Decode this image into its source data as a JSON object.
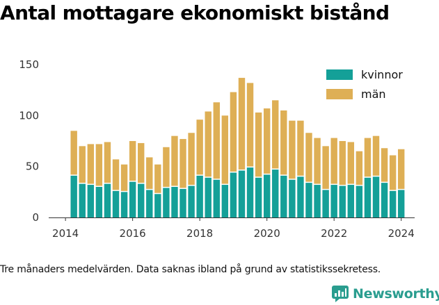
{
  "title": "Antal mottagare ekonomiskt bistånd",
  "caption": "Tre månaders medelvärden. Data saknas ibland på grund av statistikssekretess.",
  "brand": "Newsworthy",
  "colors": {
    "kvinnor": "#14a098",
    "man": "#deaf55",
    "axis": "#333333",
    "brand": "#2a9d8f"
  },
  "chart_data": {
    "type": "bar",
    "stacked": true,
    "x_ticks": [
      2014,
      2016,
      2018,
      2020,
      2022,
      2024
    ],
    "y_ticks": [
      0,
      50,
      100,
      150
    ],
    "ylim": [
      0,
      150
    ],
    "xlim": [
      2013.5,
      2024.4
    ],
    "legend_position": "top-right",
    "grid": false,
    "x": [
      2014.25,
      2014.5,
      2014.75,
      2015.0,
      2015.25,
      2015.5,
      2015.75,
      2016.0,
      2016.25,
      2016.5,
      2016.75,
      2017.0,
      2017.25,
      2017.5,
      2017.75,
      2018.0,
      2018.25,
      2018.5,
      2018.75,
      2019.0,
      2019.25,
      2019.5,
      2019.75,
      2020.0,
      2020.25,
      2020.5,
      2020.75,
      2021.0,
      2021.25,
      2021.5,
      2021.75,
      2022.0,
      2022.25,
      2022.5,
      2022.75,
      2023.0,
      2023.25,
      2023.5,
      2023.75,
      2024.0
    ],
    "series": [
      {
        "name": "kvinnor",
        "values": [
          41,
          33,
          32,
          30,
          33,
          26,
          25,
          35,
          33,
          27,
          23,
          29,
          30,
          28,
          31,
          41,
          39,
          37,
          32,
          44,
          46,
          49,
          39,
          42,
          47,
          41,
          37,
          40,
          34,
          32,
          27,
          32,
          31,
          32,
          31,
          39,
          40,
          34,
          26,
          27
        ]
      },
      {
        "name": "män",
        "values": [
          44,
          37,
          40,
          42,
          41,
          31,
          27,
          40,
          40,
          32,
          29,
          40,
          50,
          49,
          52,
          55,
          65,
          76,
          68,
          79,
          91,
          83,
          64,
          65,
          68,
          64,
          58,
          55,
          49,
          46,
          43,
          46,
          44,
          42,
          34,
          39,
          40,
          34,
          35,
          40
        ]
      }
    ]
  }
}
